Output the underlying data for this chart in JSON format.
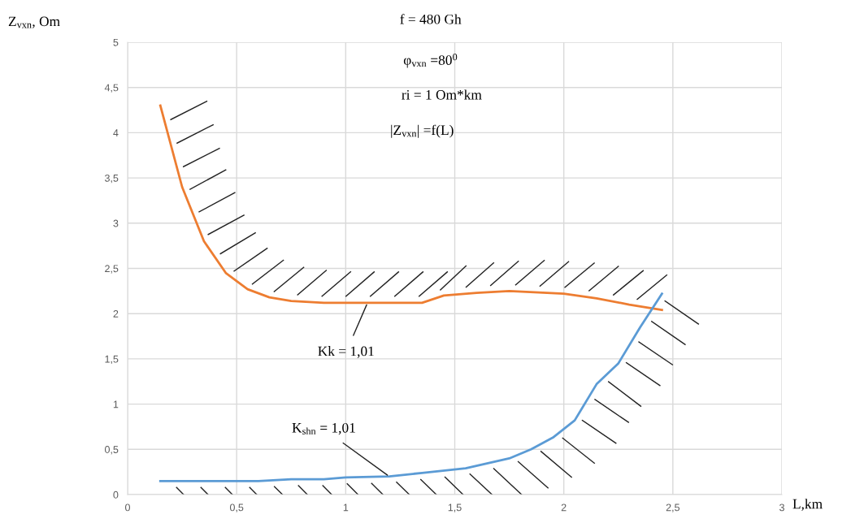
{
  "chart_data": {
    "type": "line",
    "xlabel": "L,km",
    "ylabel": "Z$_{vxn}$, Om",
    "series": [
      {
        "color": "#ed7d31",
        "x": [
          0.15,
          0.25,
          0.35,
          0.45,
          0.55,
          0.65,
          0.75,
          0.9,
          1.1,
          1.35,
          1.45,
          1.6,
          1.75,
          2.0,
          2.15,
          2.3,
          2.45
        ],
        "values": [
          4.3,
          3.4,
          2.8,
          2.45,
          2.27,
          2.18,
          2.14,
          2.12,
          2.12,
          2.12,
          2.2,
          2.23,
          2.25,
          2.22,
          2.17,
          2.1,
          2.04
        ]
      },
      {
        "color": "#5b9bd5",
        "x": [
          0.15,
          0.6,
          0.75,
          0.9,
          1.0,
          1.2,
          1.35,
          1.55,
          1.75,
          1.85,
          1.95,
          2.05,
          2.15,
          2.25,
          2.35,
          2.45
        ],
        "values": [
          0.15,
          0.15,
          0.17,
          0.17,
          0.19,
          0.2,
          0.24,
          0.29,
          0.4,
          0.5,
          0.63,
          0.82,
          1.22,
          1.45,
          1.85,
          2.22
        ]
      }
    ],
    "xlim": [
      0,
      3
    ],
    "xticks": [
      0,
      {
        "value": 0.5,
        "label": "0,5"
      },
      1,
      {
        "value": 1.5,
        "label": "1,5"
      },
      2,
      {
        "value": 2.5,
        "label": "2,5"
      },
      3
    ],
    "ylim": [
      0,
      5
    ],
    "yticks": [
      0,
      {
        "value": 0.5,
        "label": "0,5"
      },
      1,
      {
        "value": 1.5,
        "label": "1,5"
      },
      2,
      {
        "value": 2.5,
        "label": "2,5"
      },
      3,
      {
        "value": 3.5,
        "label": "3,5"
      },
      4,
      {
        "value": 4.5,
        "label": "4,5"
      },
      5
    ],
    "grid": true,
    "marker": "none",
    "line_style": "solid",
    "annotations": [
      "f = 480 Gh",
      "φ$_{vxn}$ =80$^{0}$",
      "ri = 1 Om*km",
      "|Z$_{vxn}$| =f(L)",
      {
        "text": "Kk = 1,01",
        "x": 1.1,
        "y": 2.12
      },
      {
        "text": "K$_{shn}$ = 1,01",
        "x": 1.2,
        "y": 0.2
      }
    ]
  }
}
